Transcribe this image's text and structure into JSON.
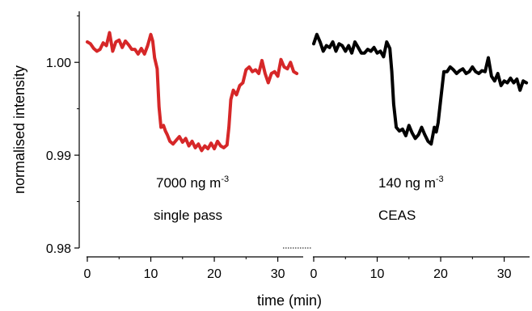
{
  "chart_data": {
    "type": "line",
    "ylabel": "normalised intensity",
    "xlabel": "time (min)",
    "ylim": [
      0.98,
      1.0055
    ],
    "yticks": [
      0.98,
      0.99,
      1.0
    ],
    "ytick_labels": [
      "0.98",
      "0.99",
      "1.00"
    ],
    "grid": false,
    "panels": [
      {
        "xlim": [
          0,
          34
        ],
        "xticks": [
          0,
          10,
          20,
          30
        ],
        "xtick_labels": [
          "0",
          "10",
          "20",
          "30"
        ],
        "annotation": {
          "line1_base": "7000 ng m",
          "line1_sup": "-3",
          "line2": "single pass"
        },
        "series": [
          {
            "color": "#d62728",
            "x": [
              0,
              0.5,
              1,
              1.5,
              2,
              2.5,
              3,
              3.5,
              4,
              4.5,
              5,
              5.5,
              6,
              6.5,
              7,
              7.5,
              8,
              8.5,
              9,
              9.5,
              10,
              10.3,
              10.6,
              11,
              11.3,
              11.6,
              12,
              12.3,
              12.6,
              13,
              13.5,
              14,
              14.5,
              15,
              15.5,
              16,
              16.5,
              17,
              17.5,
              18,
              18.5,
              19,
              19.5,
              20,
              20.5,
              21,
              21.5,
              22,
              22.3,
              22.6,
              23,
              23.5,
              24,
              24.5,
              25,
              25.5,
              26,
              26.5,
              27,
              27.5,
              28,
              28.5,
              29,
              29.5,
              30,
              30.5,
              31,
              31.5,
              32,
              32.5,
              33
            ],
            "y": [
              1.0022,
              1.002,
              1.0015,
              1.0012,
              1.0014,
              1.0021,
              1.0018,
              1.0032,
              1.0012,
              1.0022,
              1.0024,
              1.0016,
              1.0023,
              1.0019,
              1.0014,
              1.0014,
              1.0009,
              1.0015,
              1.0009,
              1.0018,
              1.003,
              1.0023,
              1.0005,
              0.9993,
              0.9952,
              0.993,
              0.9932,
              0.9926,
              0.9922,
              0.9915,
              0.9912,
              0.9916,
              0.992,
              0.9914,
              0.9918,
              0.991,
              0.9915,
              0.9908,
              0.9912,
              0.9905,
              0.991,
              0.9907,
              0.9913,
              0.9907,
              0.9915,
              0.991,
              0.9908,
              0.9911,
              0.993,
              0.996,
              0.997,
              0.9965,
              0.9975,
              0.9978,
              0.9992,
              0.9995,
              0.999,
              0.9992,
              0.9988,
              1.0002,
              0.9988,
              0.9978,
              0.9988,
              0.999,
              0.9985,
              1.0003,
              0.9995,
              0.9993,
              1.0,
              0.999,
              0.9988
            ]
          }
        ]
      },
      {
        "xlim": [
          0,
          34
        ],
        "xticks": [
          0,
          10,
          20,
          30
        ],
        "xtick_labels": [
          "0",
          "10",
          "20",
          "30"
        ],
        "annotation": {
          "line1_base": "140 ng m",
          "line1_sup": "-3",
          "line2": "CEAS"
        },
        "series": [
          {
            "color": "#000000",
            "x": [
              0,
              0.5,
              1,
              1.5,
              2,
              2.5,
              3,
              3.5,
              4,
              4.5,
              5,
              5.5,
              6,
              6.5,
              7,
              7.5,
              8,
              8.5,
              9,
              9.5,
              10,
              10.5,
              11,
              11.5,
              12,
              12.3,
              12.6,
              13,
              13.5,
              14,
              14.5,
              15,
              15.5,
              16,
              16.5,
              17,
              17.5,
              18,
              18.5,
              19,
              19.3,
              19.6,
              20,
              20.5,
              21,
              21.5,
              22,
              22.5,
              23,
              23.5,
              24,
              24.5,
              25,
              25.5,
              26,
              26.5,
              27,
              27.5,
              28,
              28.5,
              29,
              29.5,
              30,
              30.5,
              31,
              31.5,
              32,
              32.5,
              33,
              33.5
            ],
            "y": [
              1.002,
              1.003,
              1.0022,
              1.0012,
              1.0018,
              1.0016,
              1.0022,
              1.0012,
              1.002,
              1.0018,
              1.0012,
              1.0018,
              1.001,
              1.0022,
              1.0016,
              1.001,
              1.001,
              1.0014,
              1.0012,
              1.0016,
              1.001,
              1.0012,
              1.0006,
              1.0022,
              1.0015,
              0.999,
              0.9955,
              0.993,
              0.9926,
              0.9928,
              0.9921,
              0.9932,
              0.9924,
              0.9918,
              0.9922,
              0.993,
              0.9922,
              0.9915,
              0.9912,
              0.993,
              0.9925,
              0.9935,
              0.996,
              0.999,
              0.999,
              0.9995,
              0.9992,
              0.9988,
              0.9991,
              0.9993,
              0.9988,
              0.999,
              0.9995,
              0.999,
              0.9988,
              0.9991,
              0.999,
              1.0005,
              0.9985,
              0.998,
              0.9988,
              0.9975,
              0.998,
              0.9978,
              0.9983,
              0.9978,
              0.9982,
              0.997,
              0.998,
              0.9978
            ]
          }
        ]
      }
    ]
  }
}
